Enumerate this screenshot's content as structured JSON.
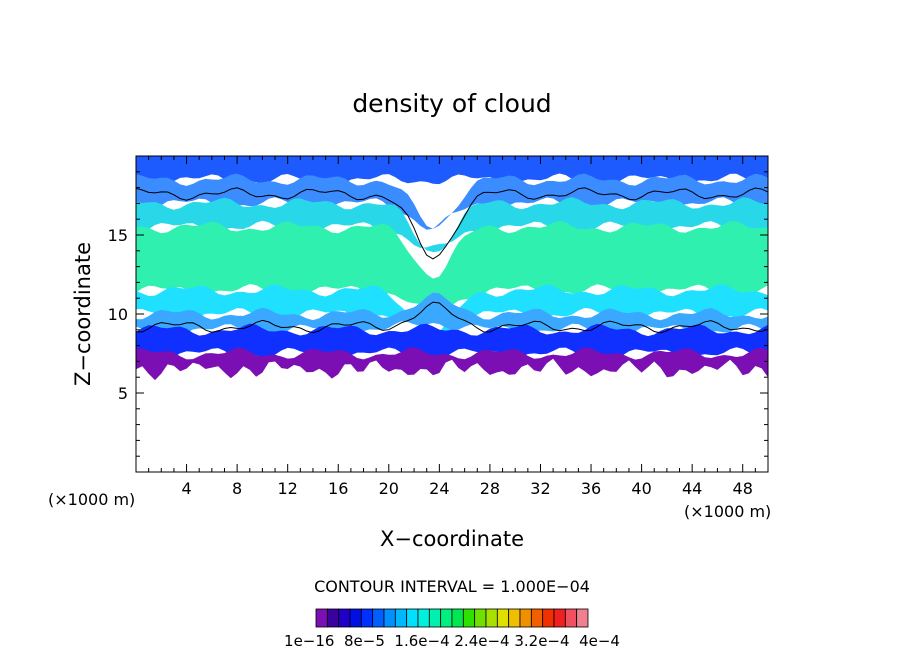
{
  "chart_data": {
    "type": "heatmap",
    "title": "density of cloud",
    "xlabel": "X−coordinate",
    "ylabel": "Z−coordinate",
    "x_unit_left": "(×1000 m)",
    "x_unit_right": "(×1000 m)",
    "xlim": [
      0,
      50
    ],
    "ylim": [
      0,
      20
    ],
    "x_ticks": [
      "4",
      "8",
      "12",
      "16",
      "20",
      "24",
      "28",
      "32",
      "36",
      "40",
      "44",
      "48"
    ],
    "y_ticks": [
      "5",
      "10",
      "15"
    ],
    "contour_interval_label": "CONTOUR INTERVAL = 1.000E−04",
    "colorbar": {
      "labels": [
        "1e−16",
        "8e−5",
        "1.6e−4",
        "2.4e−4",
        "3.2e−4",
        "4e−4"
      ],
      "label_text": "1e−16  8e−5  1.6e−4 2.4e−4 3.2e−4  4e−4",
      "colors": [
        "#7b0fb3",
        "#3a00a0",
        "#2000c8",
        "#0010e0",
        "#0030ff",
        "#0060ff",
        "#0090ff",
        "#00b8ff",
        "#00e0ff",
        "#00f0e0",
        "#00f0b0",
        "#00f080",
        "#00e850",
        "#30e000",
        "#70e000",
        "#a8e000",
        "#e0e000",
        "#f0c000",
        "#f09000",
        "#f06000",
        "#f03000",
        "#f02020",
        "#f05060",
        "#f08090"
      ]
    },
    "bands": [
      {
        "level": "top",
        "z_range": [
          18.5,
          20
        ],
        "color": "#1e5bff"
      },
      {
        "level": "upper",
        "z_range": [
          17,
          18.5
        ],
        "color": "#3a8cff"
      },
      {
        "level": "mid_high",
        "z_range": [
          15.5,
          17
        ],
        "color": "#28d8e8"
      },
      {
        "level": "core",
        "z_range": [
          11.5,
          15.5
        ],
        "color": "#30f0b0"
      },
      {
        "level": "mid_low",
        "z_range": [
          10,
          11.5
        ],
        "color": "#20e0ff"
      },
      {
        "level": "lower",
        "z_range": [
          9,
          10
        ],
        "color": "#3aa8ff"
      },
      {
        "level": "base",
        "z_range": [
          7.5,
          9
        ],
        "color": "#1030ff"
      },
      {
        "level": "bottom",
        "z_range": [
          6.5,
          7.5
        ],
        "color": "#7b0fb3"
      }
    ]
  }
}
